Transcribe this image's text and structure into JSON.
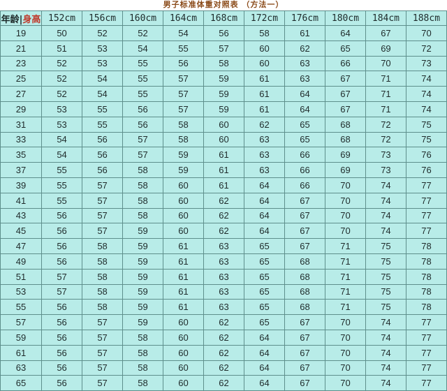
{
  "title": "男子标准体重对照表  （方法一）",
  "corner": {
    "left": "年龄",
    "sep": "|",
    "right": "身高"
  },
  "headers": [
    "152cm",
    "156cm",
    "160cm",
    "164cm",
    "168cm",
    "172cm",
    "176cm",
    "180cm",
    "184cm",
    "188cm"
  ],
  "rows": [
    [
      "19",
      "50",
      "52",
      "52",
      "54",
      "56",
      "58",
      "61",
      "64",
      "67",
      "70"
    ],
    [
      "21",
      "51",
      "53",
      "54",
      "55",
      "57",
      "60",
      "62",
      "65",
      "69",
      "72"
    ],
    [
      "23",
      "52",
      "53",
      "55",
      "56",
      "58",
      "60",
      "63",
      "66",
      "70",
      "73"
    ],
    [
      "25",
      "52",
      "54",
      "55",
      "57",
      "59",
      "61",
      "63",
      "67",
      "71",
      "74"
    ],
    [
      "27",
      "52",
      "54",
      "55",
      "57",
      "59",
      "61",
      "64",
      "67",
      "71",
      "74"
    ],
    [
      "29",
      "53",
      "55",
      "56",
      "57",
      "59",
      "61",
      "64",
      "67",
      "71",
      "74"
    ],
    [
      "31",
      "53",
      "55",
      "56",
      "58",
      "60",
      "62",
      "65",
      "68",
      "72",
      "75"
    ],
    [
      "33",
      "54",
      "56",
      "57",
      "58",
      "60",
      "63",
      "65",
      "68",
      "72",
      "75"
    ],
    [
      "35",
      "54",
      "56",
      "57",
      "59",
      "61",
      "63",
      "66",
      "69",
      "73",
      "76"
    ],
    [
      "37",
      "55",
      "56",
      "58",
      "59",
      "61",
      "63",
      "66",
      "69",
      "73",
      "76"
    ],
    [
      "39",
      "55",
      "57",
      "58",
      "60",
      "61",
      "64",
      "66",
      "70",
      "74",
      "77"
    ],
    [
      "41",
      "55",
      "57",
      "58",
      "60",
      "62",
      "64",
      "67",
      "70",
      "74",
      "77"
    ],
    [
      "43",
      "56",
      "57",
      "58",
      "60",
      "62",
      "64",
      "67",
      "70",
      "74",
      "77"
    ],
    [
      "45",
      "56",
      "57",
      "59",
      "60",
      "62",
      "64",
      "67",
      "70",
      "74",
      "77"
    ],
    [
      "47",
      "56",
      "58",
      "59",
      "61",
      "63",
      "65",
      "67",
      "71",
      "75",
      "78"
    ],
    [
      "49",
      "56",
      "58",
      "59",
      "61",
      "63",
      "65",
      "68",
      "71",
      "75",
      "78"
    ],
    [
      "51",
      "57",
      "58",
      "59",
      "61",
      "63",
      "65",
      "68",
      "71",
      "75",
      "78"
    ],
    [
      "53",
      "57",
      "58",
      "59",
      "61",
      "63",
      "65",
      "68",
      "71",
      "75",
      "78"
    ],
    [
      "55",
      "56",
      "58",
      "59",
      "61",
      "63",
      "65",
      "68",
      "71",
      "75",
      "78"
    ],
    [
      "57",
      "56",
      "57",
      "59",
      "60",
      "62",
      "65",
      "67",
      "70",
      "74",
      "77"
    ],
    [
      "59",
      "56",
      "57",
      "58",
      "60",
      "62",
      "64",
      "67",
      "70",
      "74",
      "77"
    ],
    [
      "61",
      "56",
      "57",
      "58",
      "60",
      "62",
      "64",
      "67",
      "70",
      "74",
      "77"
    ],
    [
      "63",
      "56",
      "57",
      "58",
      "60",
      "62",
      "64",
      "67",
      "70",
      "74",
      "77"
    ],
    [
      "65",
      "56",
      "57",
      "58",
      "60",
      "62",
      "64",
      "67",
      "70",
      "74",
      "77"
    ]
  ]
}
